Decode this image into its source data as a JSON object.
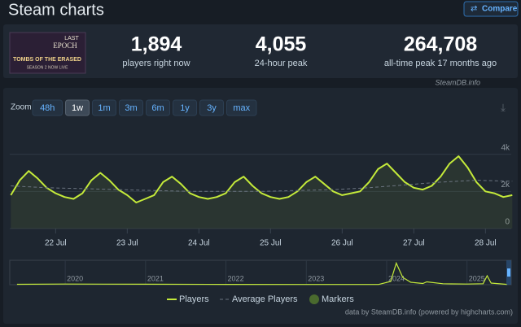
{
  "header": {
    "title": "Steam charts",
    "compare": "Compare"
  },
  "game": {
    "name_top": "LAST",
    "name_bottom": "EPOCH",
    "subtitle": "TOMBS OF THE ERASED",
    "tagline": "SEASON 2 NOW LIVE"
  },
  "stats": [
    {
      "value": "1,894",
      "label": "players right now"
    },
    {
      "value": "4,055",
      "label": "24-hour peak"
    },
    {
      "value": "264,708",
      "label": "all-time peak 17 months ago"
    }
  ],
  "source": "SteamDB.info",
  "zoom": {
    "label": "Zoom",
    "options": [
      "48h",
      "1w",
      "1m",
      "3m",
      "6m",
      "1y",
      "3y",
      "max"
    ],
    "active": "1w"
  },
  "chart_data": {
    "type": "line",
    "x": [
      21.375,
      21.5,
      21.625,
      21.75,
      21.875,
      22,
      22.125,
      22.25,
      22.375,
      22.5,
      22.625,
      22.75,
      22.875,
      23,
      23.125,
      23.25,
      23.375,
      23.5,
      23.625,
      23.75,
      23.875,
      24,
      24.125,
      24.25,
      24.375,
      24.5,
      24.625,
      24.75,
      24.875,
      25,
      25.125,
      25.25,
      25.375,
      25.5,
      25.625,
      25.75,
      25.875,
      26,
      26.125,
      26.25,
      26.375,
      26.5,
      26.625,
      26.75,
      26.875,
      27,
      27.125,
      27.25,
      27.375,
      27.5,
      27.625,
      27.75,
      27.875,
      28,
      28.125,
      28.25,
      28.375
    ],
    "series": [
      {
        "name": "Players",
        "color": "#c4ea3a",
        "values": [
          1800,
          2600,
          3100,
          2700,
          2200,
          1900,
          1700,
          1600,
          1900,
          2600,
          3000,
          2600,
          2100,
          1800,
          1400,
          1600,
          1800,
          2500,
          2800,
          2400,
          1900,
          1700,
          1600,
          1700,
          1900,
          2500,
          2800,
          2300,
          1900,
          1700,
          1600,
          1700,
          2000,
          2500,
          2800,
          2400,
          2000,
          1800,
          1900,
          2000,
          2500,
          3200,
          3500,
          3000,
          2500,
          2200,
          2100,
          2300,
          2800,
          3500,
          3900,
          3300,
          2500,
          2000,
          1900,
          1700,
          1800
        ]
      },
      {
        "name": "Average Players",
        "color": "#6b7480",
        "dashed": true,
        "x": [
          21.375,
          21.875,
          22.375,
          22.875,
          23.375,
          23.875,
          24.375,
          24.875,
          25.375,
          25.875,
          26.375,
          26.875,
          27.375,
          27.875,
          28.375
        ],
        "values": [
          2300,
          2200,
          2150,
          2100,
          2050,
          2000,
          2000,
          2000,
          2050,
          2100,
          2200,
          2350,
          2500,
          2600,
          2550
        ]
      }
    ],
    "markers": {
      "name": "Markers",
      "color": "#4a6a2e"
    },
    "area_fill": "#c4ea3a",
    "xlim": [
      21.36,
      28.36
    ],
    "xticks": [
      {
        "value": 22,
        "label": "22 Jul"
      },
      {
        "value": 23,
        "label": "23 Jul"
      },
      {
        "value": 24,
        "label": "24 Jul"
      },
      {
        "value": 25,
        "label": "25 Jul"
      },
      {
        "value": 26,
        "label": "26 Jul"
      },
      {
        "value": 27,
        "label": "27 Jul"
      },
      {
        "value": 28,
        "label": "28 Jul"
      }
    ],
    "ylim": [
      0,
      5300
    ],
    "yticks": [
      0,
      {
        "value": 2000,
        "label": "2k"
      },
      {
        "value": 4000,
        "label": "4k"
      }
    ],
    "grid": true
  },
  "navigator": {
    "x": [
      2019.4,
      2020,
      2021,
      2022,
      2023,
      2023.9,
      2024.05,
      2024.12,
      2024.2,
      2024.3,
      2024.45,
      2024.5,
      2024.7,
      2024.8,
      2025,
      2025.2,
      2025.25,
      2025.3,
      2025.5
    ],
    "values": [
      5000,
      8000,
      6000,
      4000,
      3000,
      3000,
      40000,
      264708,
      90000,
      30000,
      15000,
      35000,
      12000,
      10000,
      8000,
      12000,
      110000,
      20000,
      4000
    ],
    "xlim": [
      2019.31,
      2025.55
    ],
    "ylim": [
      0,
      280000
    ],
    "xticks": [
      2020,
      2021,
      2022,
      2023,
      2024,
      2025
    ]
  },
  "footer": "data by SteamDB.info (powered by highcharts.com)"
}
